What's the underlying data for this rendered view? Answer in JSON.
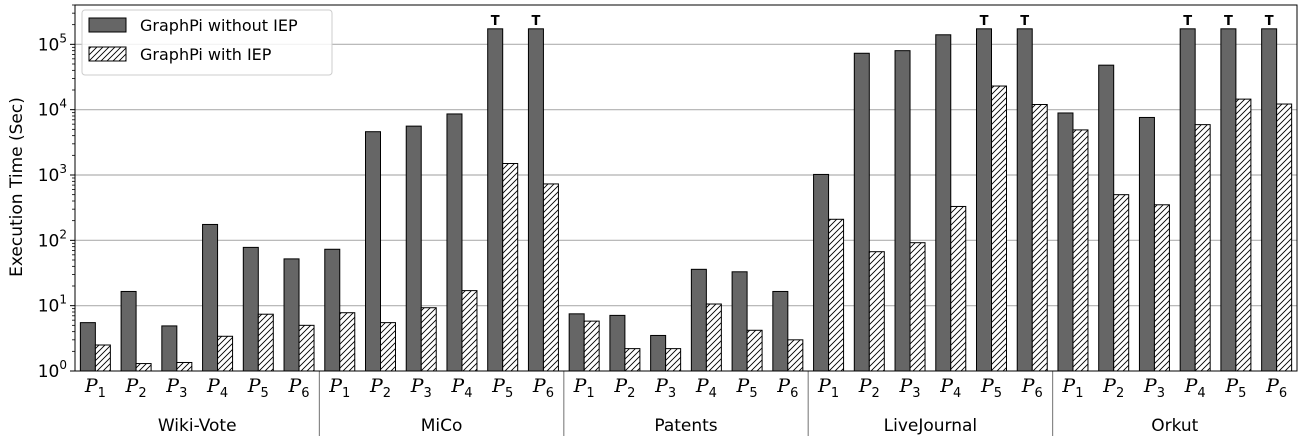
{
  "chart_data": {
    "type": "bar",
    "ylabel": "Execution Time (Sec)",
    "yscale": "log",
    "ylim": [
      1,
      400000
    ],
    "yticks": [
      {
        "value": 1,
        "base": "10",
        "exp": "0"
      },
      {
        "value": 10,
        "base": "10",
        "exp": "1"
      },
      {
        "value": 100,
        "base": "10",
        "exp": "2"
      },
      {
        "value": 1000,
        "base": "10",
        "exp": "3"
      },
      {
        "value": 10000,
        "base": "10",
        "exp": "4"
      },
      {
        "value": 100000,
        "base": "10",
        "exp": "5"
      }
    ],
    "grid": "y-major",
    "legend_position": "top-left",
    "timeout_marker": "T",
    "pattern_prefix": "P",
    "groups": [
      "Wiki-Vote",
      "MiCo",
      "Patents",
      "LiveJournal",
      "Orkut"
    ],
    "patterns": [
      "1",
      "2",
      "3",
      "4",
      "5",
      "6"
    ],
    "series": [
      {
        "name": "GraphPi without IEP",
        "color": "#666666",
        "hatch": false,
        "values": [
          [
            5.5,
            16.5,
            4.9,
            175,
            78,
            52
          ],
          [
            73,
            4600,
            5600,
            8600,
            172800,
            172800
          ],
          [
            7.5,
            7.1,
            3.5,
            36,
            33,
            16.5
          ],
          [
            1020,
            73000,
            80000,
            140000,
            172800,
            172800
          ],
          [
            8900,
            48000,
            7600,
            172800,
            172800,
            172800
          ]
        ],
        "timeouts": [
          [
            false,
            false,
            false,
            false,
            false,
            false
          ],
          [
            false,
            false,
            false,
            false,
            true,
            true
          ],
          [
            false,
            false,
            false,
            false,
            false,
            false
          ],
          [
            false,
            false,
            false,
            false,
            true,
            true
          ],
          [
            false,
            false,
            false,
            true,
            true,
            true
          ]
        ]
      },
      {
        "name": "GraphPi with IEP",
        "color": "#ffffff",
        "hatch": true,
        "values": [
          [
            2.5,
            1.3,
            1.35,
            3.4,
            7.4,
            5.0
          ],
          [
            7.8,
            5.5,
            9.3,
            17,
            1500,
            730
          ],
          [
            5.8,
            2.2,
            2.2,
            10.6,
            4.2,
            3.0
          ],
          [
            210,
            67,
            92,
            330,
            23000,
            12000
          ],
          [
            4900,
            500,
            350,
            5900,
            14500,
            12200
          ]
        ]
      }
    ]
  }
}
